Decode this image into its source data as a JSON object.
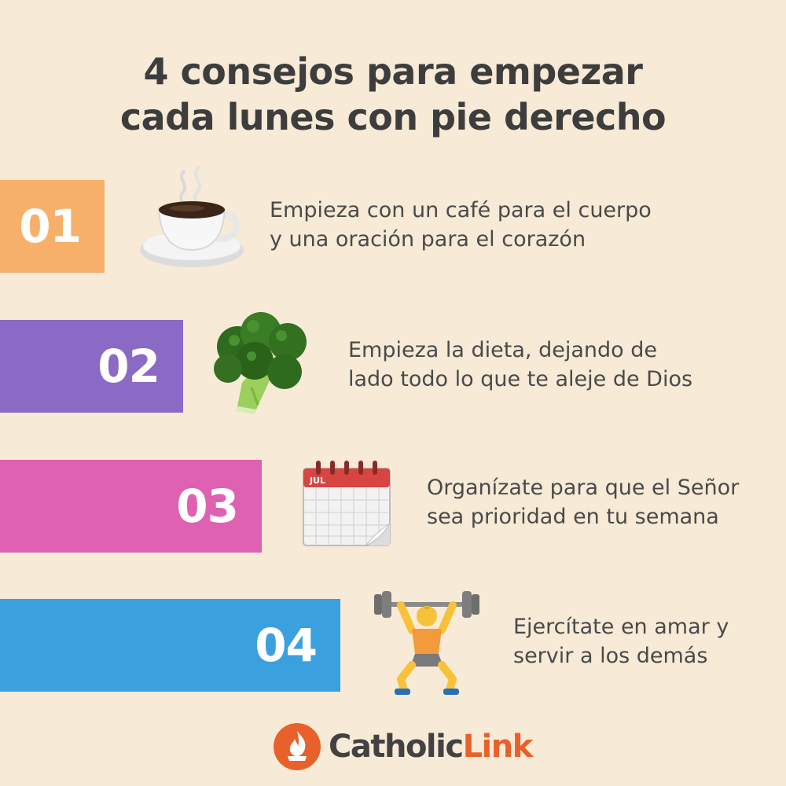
{
  "title": {
    "line1": "4 consejos para empezar",
    "line2": "cada lunes con pie derecho"
  },
  "tips": [
    {
      "number": "01",
      "line1": "Empieza con un café para el cuerpo",
      "line2": "y una oración para el corazón",
      "color": "#f6b06a",
      "icon": "coffee-cup-icon"
    },
    {
      "number": "02",
      "line1": "Empieza la dieta, dejando de",
      "line2": "lado todo lo que te aleje de Dios",
      "color": "#8a6ac4",
      "icon": "broccoli-icon"
    },
    {
      "number": "03",
      "line1": "Organízate para que el Señor",
      "line2": "sea prioridad en tu semana",
      "color": "#df61b2",
      "icon": "calendar-icon",
      "icon_text": "JUL"
    },
    {
      "number": "04",
      "line1": "Ejercítate en amar y",
      "line2": "servir a los demás",
      "color": "#3ba1de",
      "icon": "weightlifter-icon"
    }
  ],
  "brand": {
    "name_part1": "Catholic",
    "name_part2": "Link",
    "color_dark": "#424242",
    "color_accent": "#e8612a"
  },
  "background": "#f7ead6"
}
